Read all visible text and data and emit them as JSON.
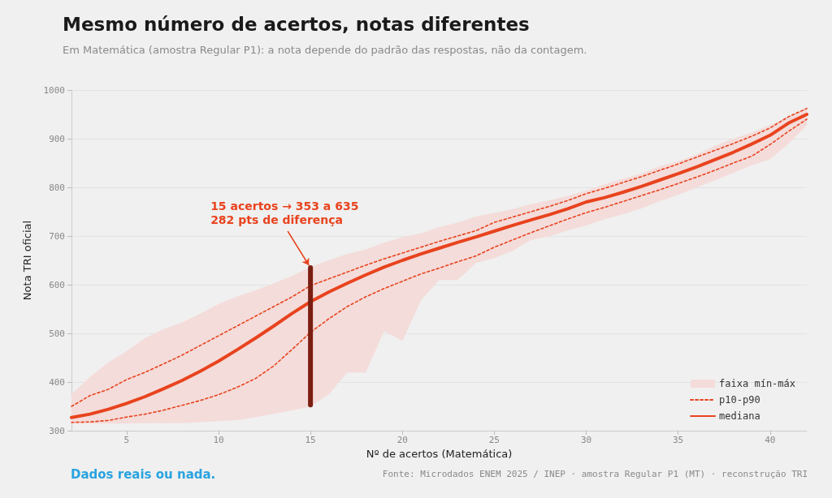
{
  "chart_data": {
    "type": "line",
    "title": "Mesmo número de acertos, notas diferentes",
    "subtitle": "Em Matemática (amostra Regular P1): a nota depende do padrão das respostas, não da contagem.",
    "xlabel": "Nº de acertos (Matemática)",
    "ylabel": "Nota TRI oficial",
    "x": [
      2,
      3,
      4,
      5,
      6,
      7,
      8,
      9,
      10,
      11,
      12,
      13,
      14,
      15,
      16,
      17,
      18,
      19,
      20,
      21,
      22,
      23,
      24,
      25,
      26,
      27,
      28,
      29,
      30,
      31,
      32,
      33,
      34,
      35,
      36,
      37,
      38,
      39,
      40,
      41,
      42
    ],
    "series": [
      {
        "name": "faixa mín-máx",
        "type": "area",
        "color": "#f4dcda",
        "values": [
          null,
          null,
          null,
          null,
          null,
          null,
          null,
          null,
          null,
          null,
          null,
          null,
          null,
          null,
          null,
          null,
          null,
          null,
          null,
          null,
          null,
          null,
          null,
          null,
          null,
          null,
          null,
          null,
          null,
          null,
          null,
          null,
          null,
          null,
          null,
          null,
          null,
          null,
          null,
          null,
          null
        ],
        "lower": [
          315,
          315,
          315,
          315,
          316,
          316,
          316,
          318,
          320,
          322,
          328,
          335,
          342,
          350,
          375,
          420,
          420,
          505,
          485,
          568,
          610,
          610,
          645,
          655,
          670,
          692,
          700,
          712,
          722,
          735,
          745,
          757,
          772,
          785,
          800,
          815,
          830,
          846,
          858,
          890,
          928
        ],
        "upper": [
          374,
          410,
          440,
          463,
          490,
          508,
          522,
          540,
          560,
          575,
          588,
          602,
          618,
          636,
          650,
          663,
          672,
          686,
          697,
          705,
          718,
          727,
          740,
          747,
          755,
          765,
          773,
          782,
          793,
          806,
          817,
          828,
          843,
          853,
          867,
          885,
          900,
          912,
          928,
          945,
          965
        ]
      },
      {
        "name": "p10-p90",
        "color": "#e8431e",
        "line_style": "dashed",
        "values": [
          350,
          372,
          385,
          405,
          420,
          437,
          455,
          475,
          495,
          515,
          535,
          555,
          575,
          598,
          612,
          626,
          640,
          653,
          665,
          677,
          689,
          700,
          711,
          728,
          739,
          750,
          761,
          773,
          787,
          798,
          810,
          822,
          835,
          848,
          862,
          876,
          890,
          905,
          922,
          945,
          962
        ]
      },
      {
        "color": "#e8431e",
        "line_style": "dashed",
        "values": [
          317,
          318,
          321,
          328,
          334,
          342,
          352,
          362,
          374,
          389,
          407,
          433,
          467,
          502,
          530,
          555,
          575,
          592,
          607,
          622,
          634,
          647,
          659,
          677,
          692,
          707,
          721,
          735,
          748,
          759,
          771,
          783,
          795,
          808,
          821,
          835,
          850,
          864,
          888,
          915,
          940
        ]
      },
      {
        "name": "mediana",
        "color": "#e8431e",
        "line_style": "solid",
        "values": [
          327,
          334,
          344,
          356,
          370,
          386,
          403,
          422,
          443,
          466,
          490,
          515,
          541,
          565,
          585,
          603,
          620,
          636,
          650,
          663,
          675,
          687,
          698,
          710,
          722,
          733,
          744,
          756,
          770,
          779,
          790,
          802,
          815,
          828,
          842,
          857,
          872,
          889,
          907,
          932,
          950
        ]
      },
      {
        "color": "#7b1e12",
        "line_style": "solid",
        "x": [
          15,
          15
        ],
        "values": [
          353,
          635
        ]
      }
    ],
    "xlim": [
      2,
      42
    ],
    "xticks": [
      5,
      10,
      15,
      20,
      25,
      30,
      35,
      40
    ],
    "ylim": [
      300,
      1000
    ],
    "yticks": [
      300,
      400,
      500,
      600,
      700,
      800,
      900,
      1000
    ],
    "grid": "y",
    "legend": "bottom right",
    "marker": "none",
    "annotations": [
      {
        "text": "15 acertos → 353 a 635\n282 pts de diferença",
        "x": 15,
        "y": 635
      },
      "Dados reais ou nada.",
      "Fonte: Microdados ENEM 2025 / INEP · amostra Regular P1 (MT) · reconstrução TRI"
    ]
  }
}
